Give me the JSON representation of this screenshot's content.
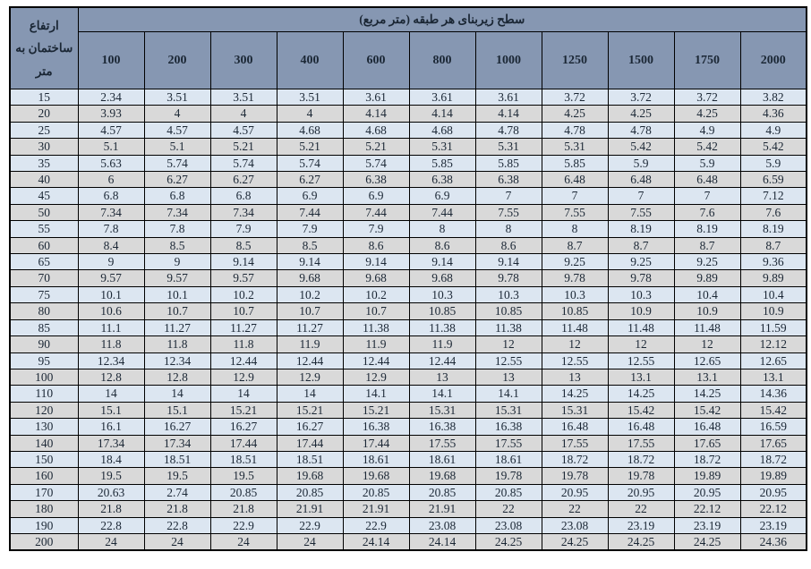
{
  "header": {
    "corner_lines": "ارتفاع\nساختمان به\nمتر"
  },
  "colors": {
    "header_bg": "#8697b2",
    "row_blue": "#dce6f1",
    "row_gray": "#d9d9d9",
    "border": "#000000",
    "text": "#1b2735"
  },
  "chart_data": {
    "type": "table",
    "title": "سطح زیربنای هر طبقه (متر مربع)",
    "row_header": "ارتفاع ساختمان به متر",
    "columns": [
      "100",
      "200",
      "300",
      "400",
      "600",
      "800",
      "1000",
      "1250",
      "1500",
      "1750",
      "2000"
    ],
    "heights": [
      "15",
      "20",
      "25",
      "30",
      "35",
      "40",
      "45",
      "50",
      "55",
      "60",
      "65",
      "70",
      "75",
      "80",
      "85",
      "90",
      "95",
      "100",
      "110",
      "120",
      "130",
      "140",
      "150",
      "160",
      "170",
      "180",
      "190",
      "200"
    ],
    "values": [
      [
        "2.34",
        "3.51",
        "3.51",
        "3.51",
        "3.61",
        "3.61",
        "3.61",
        "3.72",
        "3.72",
        "3.72",
        "3.82"
      ],
      [
        "3.93",
        "4",
        "4",
        "4",
        "4.14",
        "4.14",
        "4.14",
        "4.25",
        "4.25",
        "4.25",
        "4.36"
      ],
      [
        "4.57",
        "4.57",
        "4.57",
        "4.68",
        "4.68",
        "4.68",
        "4.78",
        "4.78",
        "4.78",
        "4.9",
        "4.9"
      ],
      [
        "5.1",
        "5.1",
        "5.21",
        "5.21",
        "5.21",
        "5.31",
        "5.31",
        "5.31",
        "5.42",
        "5.42",
        "5.42"
      ],
      [
        "5.63",
        "5.74",
        "5.74",
        "5.74",
        "5.74",
        "5.85",
        "5.85",
        "5.85",
        "5.9",
        "5.9",
        "5.9"
      ],
      [
        "6",
        "6.27",
        "6.27",
        "6.27",
        "6.38",
        "6.38",
        "6.38",
        "6.48",
        "6.48",
        "6.48",
        "6.59"
      ],
      [
        "6.8",
        "6.8",
        "6.8",
        "6.9",
        "6.9",
        "6.9",
        "7",
        "7",
        "7",
        "7",
        "7.12"
      ],
      [
        "7.34",
        "7.34",
        "7.34",
        "7.44",
        "7.44",
        "7.44",
        "7.55",
        "7.55",
        "7.55",
        "7.6",
        "7.6"
      ],
      [
        "7.8",
        "7.8",
        "7.9",
        "7.9",
        "7.9",
        "8",
        "8",
        "8",
        "8.19",
        "8.19",
        "8.19"
      ],
      [
        "8.4",
        "8.5",
        "8.5",
        "8.5",
        "8.6",
        "8.6",
        "8.6",
        "8.7",
        "8.7",
        "8.7",
        "8.7"
      ],
      [
        "9",
        "9",
        "9.14",
        "9.14",
        "9.14",
        "9.14",
        "9.14",
        "9.25",
        "9.25",
        "9.25",
        "9.36"
      ],
      [
        "9.57",
        "9.57",
        "9.57",
        "9.68",
        "9.68",
        "9.68",
        "9.78",
        "9.78",
        "9.78",
        "9.89",
        "9.89"
      ],
      [
        "10.1",
        "10.1",
        "10.2",
        "10.2",
        "10.2",
        "10.3",
        "10.3",
        "10.3",
        "10.3",
        "10.4",
        "10.4"
      ],
      [
        "10.6",
        "10.7",
        "10.7",
        "10.7",
        "10.7",
        "10.85",
        "10.85",
        "10.85",
        "10.9",
        "10.9",
        "10.9"
      ],
      [
        "11.1",
        "11.27",
        "11.27",
        "11.27",
        "11.38",
        "11.38",
        "11.38",
        "11.48",
        "11.48",
        "11.48",
        "11.59"
      ],
      [
        "11.8",
        "11.8",
        "11.8",
        "11.9",
        "11.9",
        "11.9",
        "12",
        "12",
        "12",
        "12",
        "12.12"
      ],
      [
        "12.34",
        "12.34",
        "12.44",
        "12.44",
        "12.44",
        "12.44",
        "12.55",
        "12.55",
        "12.55",
        "12.65",
        "12.65"
      ],
      [
        "12.8",
        "12.8",
        "12.9",
        "12.9",
        "12.9",
        "13",
        "13",
        "13",
        "13.1",
        "13.1",
        "13.1"
      ],
      [
        "14",
        "14",
        "14",
        "14",
        "14.1",
        "14.1",
        "14.1",
        "14.25",
        "14.25",
        "14.25",
        "14.36"
      ],
      [
        "15.1",
        "15.1",
        "15.21",
        "15.21",
        "15.21",
        "15.31",
        "15.31",
        "15.31",
        "15.42",
        "15.42",
        "15.42"
      ],
      [
        "16.1",
        "16.27",
        "16.27",
        "16.27",
        "16.38",
        "16.38",
        "16.38",
        "16.48",
        "16.48",
        "16.48",
        "16.59"
      ],
      [
        "17.34",
        "17.34",
        "17.44",
        "17.44",
        "17.44",
        "17.55",
        "17.55",
        "17.55",
        "17.55",
        "17.65",
        "17.65"
      ],
      [
        "18.4",
        "18.51",
        "18.51",
        "18.51",
        "18.61",
        "18.61",
        "18.61",
        "18.72",
        "18.72",
        "18.72",
        "18.72"
      ],
      [
        "19.5",
        "19.5",
        "19.5",
        "19.68",
        "19.68",
        "19.68",
        "19.78",
        "19.78",
        "19.78",
        "19.89",
        "19.89"
      ],
      [
        "20.63",
        "2.74",
        "20.85",
        "20.85",
        "20.85",
        "20.85",
        "20.85",
        "20.95",
        "20.95",
        "20.95",
        "20.95"
      ],
      [
        "21.8",
        "21.8",
        "21.8",
        "21.91",
        "21.91",
        "21.91",
        "22",
        "22",
        "22",
        "22.12",
        "22.12"
      ],
      [
        "22.8",
        "22.8",
        "22.9",
        "22.9",
        "22.9",
        "23.08",
        "23.08",
        "23.08",
        "23.19",
        "23.19",
        "23.19"
      ],
      [
        "24",
        "24",
        "24",
        "24",
        "24.14",
        "24.14",
        "24.25",
        "24.25",
        "24.25",
        "24.25",
        "24.36"
      ]
    ]
  }
}
